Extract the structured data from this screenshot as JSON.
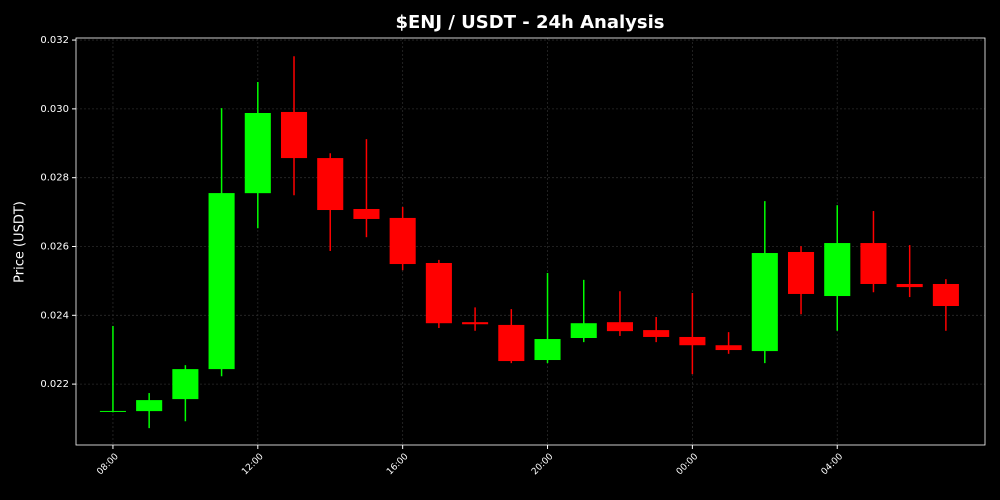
{
  "chart_data": {
    "type": "candlestick",
    "title": "$ENJ / USDT - 24h Analysis",
    "y_label": "Price (USDT)",
    "categories": [
      "08:00",
      null,
      null,
      null,
      "12:00",
      null,
      null,
      null,
      "16:00",
      null,
      null,
      null,
      "20:00",
      null,
      null,
      null,
      "00:00",
      null,
      null,
      null,
      "04:00",
      null,
      null,
      null
    ],
    "open": [
      0.0212,
      0.021215,
      0.021564,
      0.022436,
      0.02755,
      0.02991,
      0.02857,
      0.02709,
      0.02683,
      0.02552,
      0.0238,
      0.02372,
      0.0227,
      0.02334,
      0.0238,
      0.02357,
      0.02337,
      0.02313,
      0.02296,
      0.02584,
      0.02456,
      0.0261,
      0.02491,
      0.02491
    ],
    "high": [
      0.02369,
      0.02174,
      0.02255,
      0.03002,
      0.03078,
      0.03153,
      0.02871,
      0.02912,
      0.02715,
      0.02561,
      0.02423,
      0.02418,
      0.02523,
      0.02503,
      0.0247,
      0.02395,
      0.02465,
      0.02351,
      0.02732,
      0.02601,
      0.0272,
      0.02703,
      0.02604,
      0.02505
    ],
    "low": [
      0.02118,
      0.02072,
      0.02092,
      0.02223,
      0.02653,
      0.02749,
      0.02587,
      0.02627,
      0.02531,
      0.02363,
      0.02355,
      0.02261,
      0.02261,
      0.02322,
      0.0234,
      0.02322,
      0.02229,
      0.02288,
      0.02261,
      0.02403,
      0.02355,
      0.02467,
      0.02453,
      0.02355
    ],
    "close": [
      0.02122,
      0.021535,
      0.022436,
      0.027552,
      0.02988,
      0.02857,
      0.02706,
      0.0268,
      0.02549,
      0.02377,
      0.02374,
      0.02267,
      0.02331,
      0.02377,
      0.02354,
      0.02337,
      0.02313,
      0.02299,
      0.02581,
      0.02462,
      0.0261,
      0.02491,
      0.02482,
      0.02427
    ],
    "up_color": "#00ff00",
    "down_color": "#ff0000",
    "ylim": [
      0.02023,
      0.03206
    ],
    "yticks": [
      0.022,
      0.024,
      0.026,
      0.028,
      {
        "value": 0.03,
        "label": "0.030"
      },
      0.032
    ],
    "grid": true
  }
}
